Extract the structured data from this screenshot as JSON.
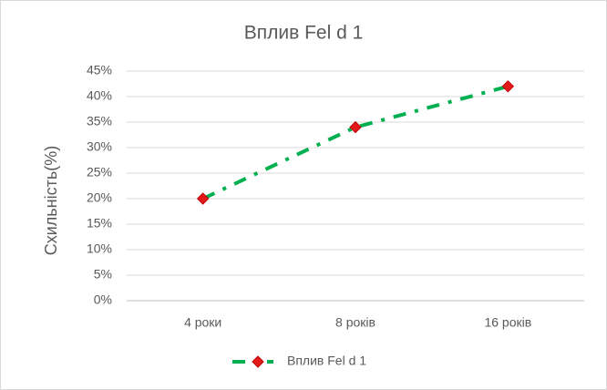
{
  "chart_data": {
    "type": "line",
    "title": "Вплив Fel d 1",
    "y_label": "Схильність(%)",
    "categories": [
      "4 роки",
      "8 років",
      "16 років"
    ],
    "series": [
      {
        "name": "Вплив Fel d 1",
        "color": "#00b050",
        "marker_color": "#e31a1c",
        "values": [
          20,
          34,
          42
        ]
      }
    ],
    "ylim": [
      0,
      45
    ],
    "yticks": [
      {
        "value": 0,
        "label": "0%"
      },
      {
        "value": 5,
        "label": "5%"
      },
      {
        "value": 10,
        "label": "10%"
      },
      {
        "value": 15,
        "label": "15%"
      },
      {
        "value": 20,
        "label": "20%"
      },
      {
        "value": 25,
        "label": "25%"
      },
      {
        "value": 30,
        "label": "30%"
      },
      {
        "value": 35,
        "label": "35%"
      },
      {
        "value": 40,
        "label": "40%"
      },
      {
        "value": 45,
        "label": "45%"
      }
    ],
    "grid": true,
    "legend": "bottom"
  }
}
